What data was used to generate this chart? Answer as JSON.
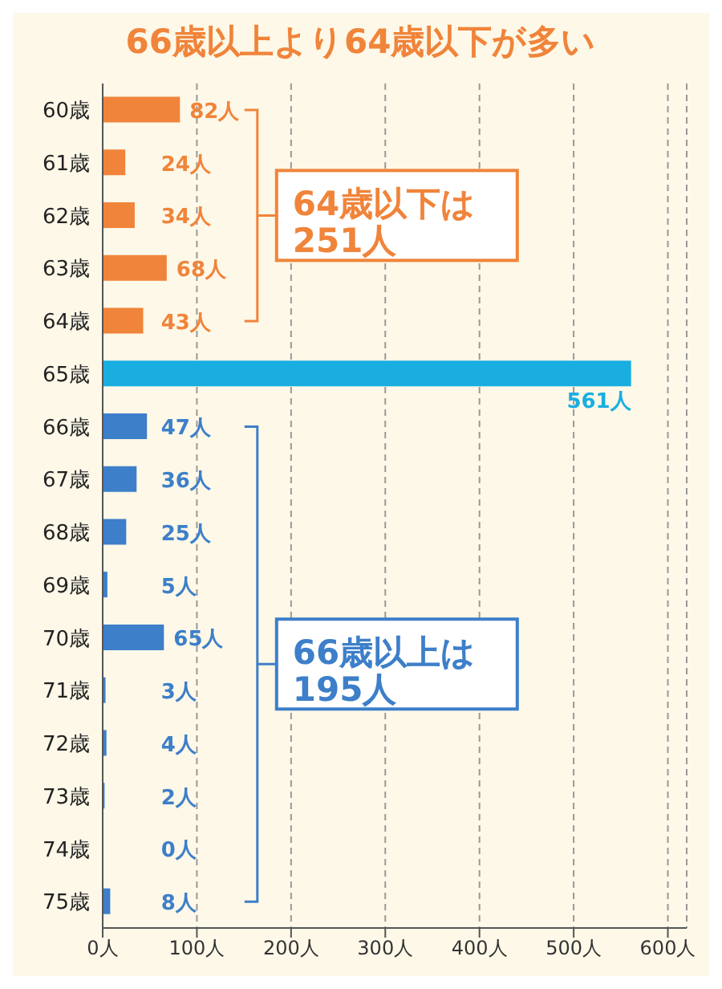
{
  "chart_data": {
    "type": "bar",
    "orientation": "horizontal",
    "title": "66歳以上より64歳以下が多い",
    "categories": [
      "60歳",
      "61歳",
      "62歳",
      "63歳",
      "64歳",
      "65歳",
      "66歳",
      "67歳",
      "68歳",
      "69歳",
      "70歳",
      "71歳",
      "72歳",
      "73歳",
      "74歳",
      "75歳"
    ],
    "values": [
      82,
      24,
      34,
      68,
      43,
      561,
      47,
      36,
      25,
      5,
      65,
      3,
      4,
      2,
      0,
      8
    ],
    "colors": [
      "#f0843a",
      "#f0843a",
      "#f0843a",
      "#f0843a",
      "#f0843a",
      "#1aaee0",
      "#3d7fc9",
      "#3d7fc9",
      "#3d7fc9",
      "#3d7fc9",
      "#3d7fc9",
      "#3d7fc9",
      "#3d7fc9",
      "#3d7fc9",
      "#3d7fc9",
      "#3d7fc9"
    ],
    "value_labels": [
      "82人",
      "24人",
      "34人",
      "68人",
      "43人",
      "561人",
      "47人",
      "36人",
      "25人",
      "5人",
      "65人",
      "3人",
      "4人",
      "2人",
      "0人",
      "8人"
    ],
    "xlim": [
      0,
      620
    ],
    "xticks": [
      {
        "value": 0,
        "label": "0人"
      },
      {
        "value": 100,
        "label": "100人"
      },
      {
        "value": 200,
        "label": "200人"
      },
      {
        "value": 300,
        "label": "300人"
      },
      {
        "value": 400,
        "label": "400人"
      },
      {
        "value": 500,
        "label": "500人"
      },
      {
        "value": 600,
        "label": "600人"
      }
    ],
    "grid": "x",
    "annotations": [
      "64歳以下は\n251人",
      "66歳以上は\n195人"
    ]
  }
}
